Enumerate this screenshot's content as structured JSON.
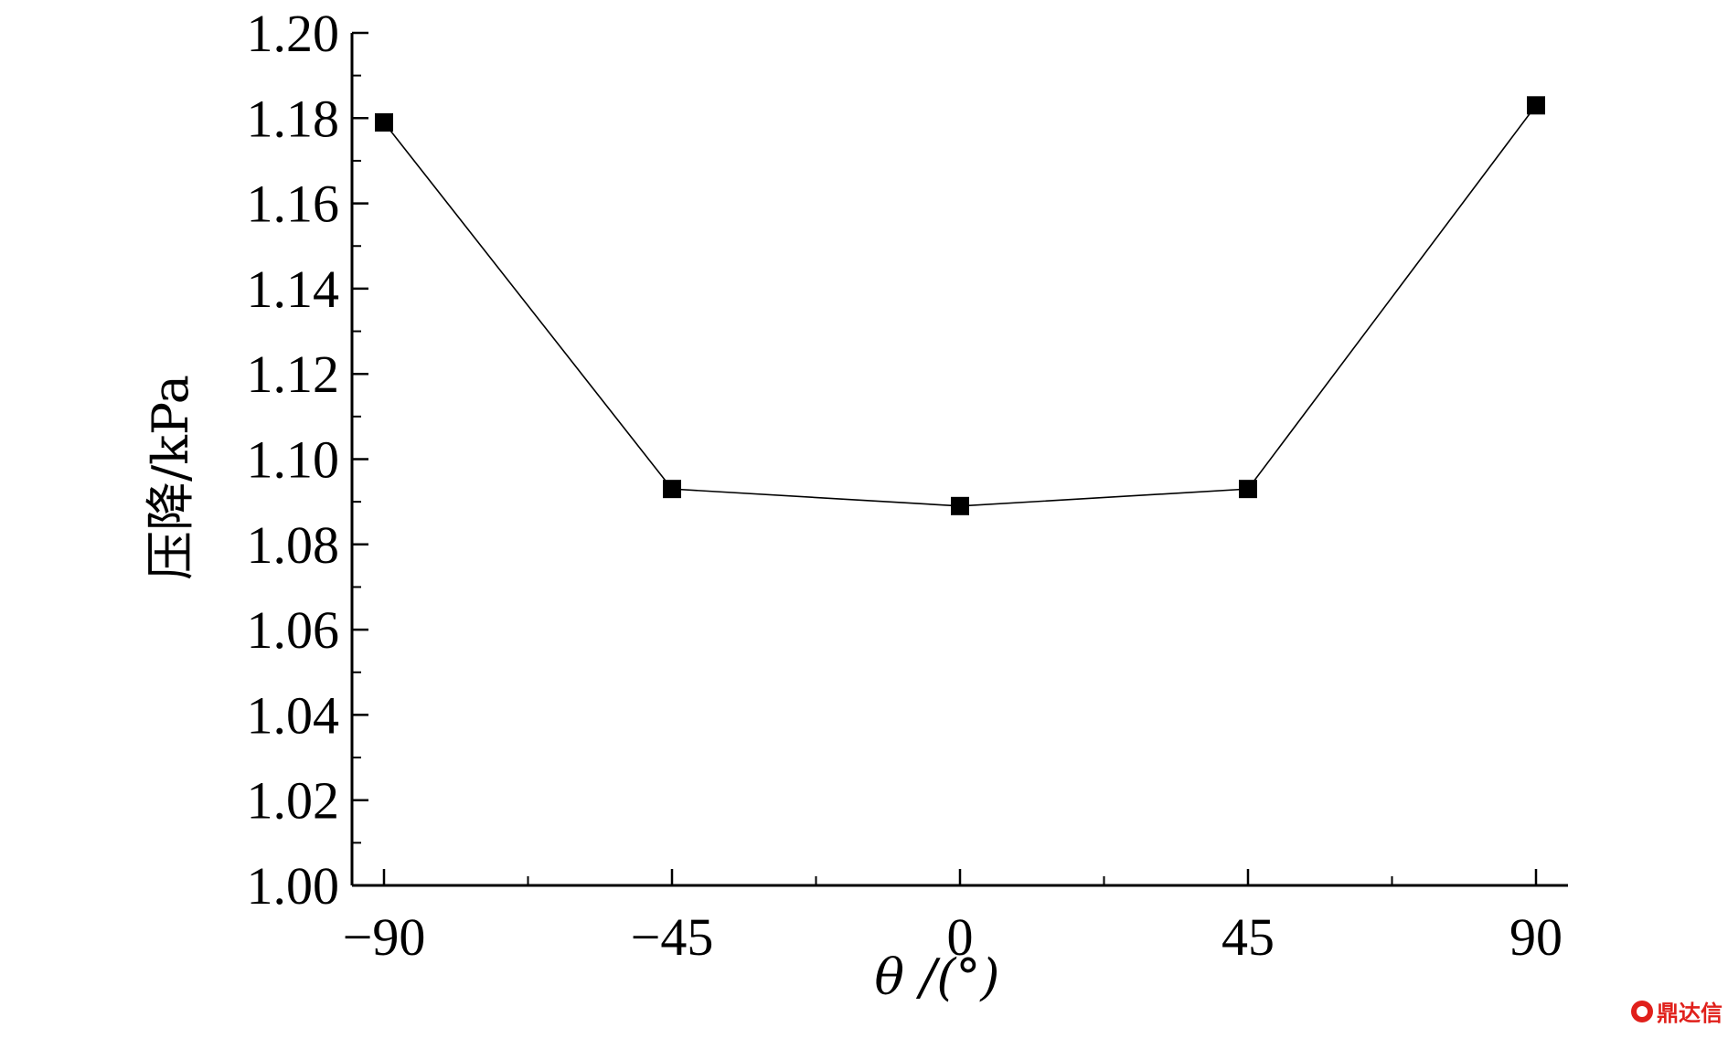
{
  "chart_data": {
    "type": "line",
    "title": "",
    "xlabel": "θ /(°)",
    "ylabel": "压降/kPa",
    "x": [
      -90,
      -45,
      0,
      45,
      90
    ],
    "series": [
      {
        "values": [
          1.179,
          1.093,
          1.089,
          1.093,
          1.183
        ]
      }
    ],
    "xlim": [
      -95,
      95
    ],
    "ylim": [
      1.0,
      1.2
    ],
    "xticks": [
      -90,
      -45,
      0,
      45,
      90
    ],
    "xtick_labels": [
      "−90",
      "−45",
      "0",
      "45",
      "90"
    ],
    "yticks": [
      1.0,
      1.02,
      1.04,
      1.06,
      1.08,
      1.1,
      1.12,
      1.14,
      1.16,
      1.18,
      1.2
    ],
    "ytick_labels": [
      "1.00",
      "1.02",
      "1.04",
      "1.06",
      "1.08",
      "1.10",
      "1.12",
      "1.14",
      "1.16",
      "1.18",
      "1.20"
    ],
    "grid": false,
    "marker": "square",
    "line_color": "#000000",
    "marker_color": "#000000"
  },
  "watermark": {
    "text": "鼎达信",
    "color": "#e0201b"
  }
}
